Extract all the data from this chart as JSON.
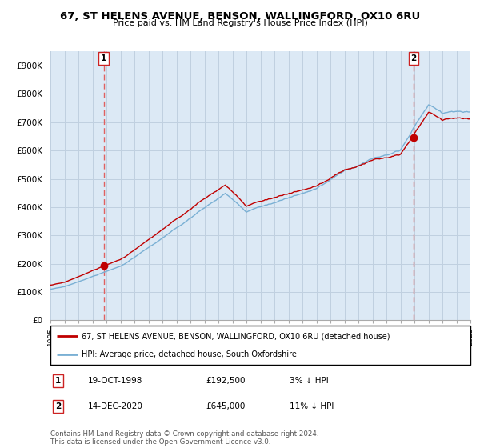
{
  "title": "67, ST HELENS AVENUE, BENSON, WALLINGFORD, OX10 6RU",
  "subtitle": "Price paid vs. HM Land Registry's House Price Index (HPI)",
  "ylim": [
    0,
    950000
  ],
  "yticks": [
    0,
    100000,
    200000,
    300000,
    400000,
    500000,
    600000,
    700000,
    800000,
    900000
  ],
  "ytick_labels": [
    "£0",
    "£100K",
    "£200K",
    "£300K",
    "£400K",
    "£500K",
    "£600K",
    "£700K",
    "£800K",
    "£900K"
  ],
  "hpi_color": "#7ab0d4",
  "price_color": "#c00000",
  "vline_color": "#e06060",
  "background_color": "#dce9f5",
  "grid_color": "#c0d0e0",
  "legend_entry1": "67, ST HELENS AVENUE, BENSON, WALLINGFORD, OX10 6RU (detached house)",
  "legend_entry2": "HPI: Average price, detached house, South Oxfordshire",
  "sale1_date": "19-OCT-1998",
  "sale1_price": "£192,500",
  "sale1_hpi": "3% ↓ HPI",
  "sale1_year": 1998.8,
  "sale1_value": 192500,
  "sale2_date": "14-DEC-2020",
  "sale2_price": "£645,000",
  "sale2_hpi": "11% ↓ HPI",
  "sale2_year": 2020.95,
  "sale2_value": 645000,
  "footer": "Contains HM Land Registry data © Crown copyright and database right 2024.\nThis data is licensed under the Open Government Licence v3.0.",
  "xmin": 1995,
  "xmax": 2025
}
